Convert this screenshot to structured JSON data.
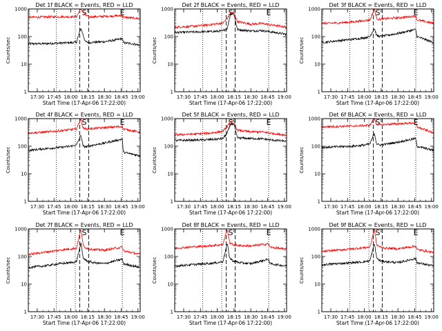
{
  "chart_data": {
    "type": "line",
    "grid_layout": "3x3",
    "y_scale": "log",
    "ylim": [
      1,
      1000
    ],
    "y_ticks": [
      1,
      10,
      100,
      1000
    ],
    "y_tick_labels": [
      "1",
      "10",
      "100",
      "1000"
    ],
    "x_ticks": [
      "17:30",
      "17:45",
      "18:00",
      "18:15",
      "18:30",
      "18:45",
      "19:00"
    ],
    "x_tick_labels": [
      "17:30",
      "17:45",
      "18:00",
      "18:15",
      "18:30",
      "18:45",
      "19:00"
    ],
    "xlim": [
      "17:22",
      "19:02"
    ],
    "xlabel": "Start Time (17-Apr-06 17:22:00)",
    "ylabel": "Counts/sec",
    "interval_markers": [
      {
        "label": "S",
        "times": [
          "18:08",
          "18:16"
        ],
        "style": "dashed"
      },
      {
        "label": "E",
        "times": [
          "18:46"
        ],
        "style": "dotted"
      }
    ],
    "night_markers": [
      "17:22",
      "17:47",
      "18:04"
    ],
    "series_colors": {
      "events": "#000000",
      "lld": "#ff0000"
    },
    "panels": [
      {
        "title": "Det 1f BLACK = Events, RED = LLD",
        "series": [
          {
            "name": "Events",
            "color": "#000000",
            "x": [
              "17:22",
              "17:35",
              "17:50",
              "18:00",
              "18:05",
              "18:09",
              "18:13",
              "18:16",
              "18:20",
              "18:30",
              "18:40",
              "18:46",
              "18:47",
              "18:55",
              "19:02"
            ],
            "values": [
              55,
              55,
              58,
              60,
              62,
              200,
              65,
              60,
              62,
              65,
              75,
              85,
              60,
              55,
              48
            ]
          },
          {
            "name": "LLD",
            "color": "#ff0000",
            "x": [
              "17:22",
              "17:35",
              "17:50",
              "18:00",
              "18:05",
              "18:09",
              "18:13",
              "18:16",
              "18:20",
              "18:30",
              "18:40",
              "18:46",
              "18:47",
              "18:55",
              "19:02"
            ],
            "values": [
              500,
              510,
              520,
              520,
              530,
              1000,
              600,
              520,
              520,
              540,
              560,
              570,
              500,
              470,
              440
            ]
          }
        ]
      },
      {
        "title": "Det 2f BLACK = Events, RED = LLD",
        "series": [
          {
            "name": "Events",
            "color": "#000000",
            "x": [
              "17:22",
              "17:35",
              "17:50",
              "18:00",
              "18:05",
              "18:09",
              "18:12",
              "18:15",
              "18:18",
              "18:30",
              "18:40",
              "18:47",
              "19:02"
            ],
            "values": [
              140,
              145,
              150,
              155,
              160,
              200,
              700,
              650,
              180,
              160,
              165,
              150,
              120
            ]
          },
          {
            "name": "LLD",
            "color": "#ff0000",
            "x": [
              "17:22",
              "17:35",
              "17:50",
              "18:00",
              "18:05",
              "18:09",
              "18:12",
              "18:15",
              "18:18",
              "18:30",
              "18:40",
              "18:47",
              "19:02"
            ],
            "values": [
              220,
              230,
              260,
              290,
              310,
              450,
              750,
              700,
              350,
              280,
              300,
              270,
              220
            ]
          }
        ]
      },
      {
        "title": "Det 3f BLACK = Events, RED = LLD",
        "series": [
          {
            "name": "Events",
            "color": "#000000",
            "x": [
              "17:22",
              "17:35",
              "17:50",
              "18:00",
              "18:05",
              "18:09",
              "18:11",
              "18:14",
              "18:20",
              "18:30",
              "18:40",
              "18:46",
              "18:47",
              "19:02"
            ],
            "values": [
              60,
              70,
              80,
              90,
              100,
              200,
              110,
              100,
              110,
              130,
              160,
              180,
              100,
              60
            ]
          },
          {
            "name": "LLD",
            "color": "#ff0000",
            "x": [
              "17:22",
              "17:35",
              "17:50",
              "18:00",
              "18:05",
              "18:09",
              "18:11",
              "18:14",
              "18:20",
              "18:30",
              "18:40",
              "18:46",
              "18:47",
              "19:02"
            ],
            "values": [
              300,
              310,
              340,
              380,
              400,
              1000,
              450,
              420,
              450,
              480,
              520,
              560,
              400,
              300
            ]
          }
        ]
      },
      {
        "title": "Det 4f BLACK = Events, RED = LLD",
        "series": [
          {
            "name": "Events",
            "color": "#000000",
            "x": [
              "17:22",
              "17:35",
              "17:50",
              "18:00",
              "18:05",
              "18:09",
              "18:11",
              "18:14",
              "18:20",
              "18:30",
              "18:40",
              "18:46",
              "18:47",
              "19:02"
            ],
            "values": [
              70,
              80,
              90,
              100,
              110,
              250,
              100,
              95,
              110,
              130,
              160,
              180,
              60,
              45
            ]
          },
          {
            "name": "LLD",
            "color": "#ff0000",
            "x": [
              "17:22",
              "17:35",
              "17:50",
              "18:00",
              "18:05",
              "18:09",
              "18:11",
              "18:14",
              "18:20",
              "18:30",
              "18:40",
              "18:46",
              "18:47",
              "19:02"
            ],
            "values": [
              300,
              320,
              360,
              400,
              420,
              1000,
              450,
              420,
              440,
              470,
              500,
              520,
              420,
              320
            ]
          }
        ]
      },
      {
        "title": "Det 5f BLACK = Events, RED = LLD",
        "series": [
          {
            "name": "Events",
            "color": "#000000",
            "x": [
              "17:22",
              "17:35",
              "17:50",
              "18:00",
              "18:05",
              "18:09",
              "18:12",
              "18:15",
              "18:18",
              "18:30",
              "18:40",
              "18:47",
              "19:02"
            ],
            "values": [
              160,
              165,
              170,
              180,
              190,
              300,
              650,
              600,
              200,
              190,
              185,
              170,
              150
            ]
          },
          {
            "name": "LLD",
            "color": "#ff0000",
            "x": [
              "17:22",
              "17:35",
              "17:50",
              "18:00",
              "18:05",
              "18:09",
              "18:12",
              "18:15",
              "18:18",
              "18:30",
              "18:40",
              "18:47",
              "19:02"
            ],
            "values": [
              260,
              270,
              290,
              320,
              350,
              500,
              800,
              750,
              380,
              330,
              330,
              300,
              250
            ]
          }
        ]
      },
      {
        "title": "Det 6f BLACK = Events, RED = LLD",
        "series": [
          {
            "name": "Events",
            "color": "#000000",
            "x": [
              "17:22",
              "17:35",
              "17:50",
              "18:00",
              "18:05",
              "18:09",
              "18:11",
              "18:14",
              "18:20",
              "18:30",
              "18:40",
              "18:46",
              "18:47",
              "19:02"
            ],
            "values": [
              90,
              95,
              100,
              110,
              120,
              300,
              120,
              110,
              120,
              140,
              170,
              190,
              100,
              70
            ]
          },
          {
            "name": "LLD",
            "color": "#ff0000",
            "x": [
              "17:22",
              "17:35",
              "17:50",
              "18:00",
              "18:05",
              "18:09",
              "18:11",
              "18:14",
              "18:20",
              "18:30",
              "18:40",
              "18:46",
              "18:47",
              "19:02"
            ],
            "values": [
              500,
              520,
              540,
              560,
              580,
              1000,
              620,
              600,
              620,
              650,
              680,
              700,
              500,
              300
            ]
          }
        ]
      },
      {
        "title": "Det 7f BLACK = Events, RED = LLD",
        "series": [
          {
            "name": "Events",
            "color": "#000000",
            "x": [
              "17:22",
              "17:35",
              "17:50",
              "18:00",
              "18:05",
              "18:09",
              "18:11",
              "18:14",
              "18:20",
              "18:30",
              "18:40",
              "18:46",
              "18:47",
              "19:02"
            ],
            "values": [
              40,
              45,
              55,
              60,
              65,
              300,
              90,
              70,
              60,
              55,
              70,
              80,
              55,
              40
            ]
          },
          {
            "name": "LLD",
            "color": "#ff0000",
            "x": [
              "17:22",
              "17:35",
              "17:50",
              "18:00",
              "18:05",
              "18:09",
              "18:11",
              "18:14",
              "18:20",
              "18:30",
              "18:40",
              "18:46",
              "18:47",
              "19:02"
            ],
            "values": [
              120,
              140,
              170,
              190,
              200,
              1000,
              250,
              200,
              180,
              170,
              200,
              220,
              160,
              120
            ]
          }
        ]
      },
      {
        "title": "Det 8f BLACK = Events, RED = LLD",
        "series": [
          {
            "name": "Events",
            "color": "#000000",
            "x": [
              "17:22",
              "17:35",
              "17:50",
              "18:00",
              "18:05",
              "18:09",
              "18:11",
              "18:14",
              "18:20",
              "18:30",
              "18:40",
              "18:46",
              "18:47",
              "19:02"
            ],
            "values": [
              45,
              50,
              55,
              60,
              65,
              300,
              90,
              70,
              60,
              55,
              70,
              80,
              55,
              45
            ]
          },
          {
            "name": "LLD",
            "color": "#ff0000",
            "x": [
              "17:22",
              "17:35",
              "17:50",
              "18:00",
              "18:05",
              "18:09",
              "18:11",
              "18:14",
              "18:20",
              "18:30",
              "18:40",
              "18:46",
              "18:47",
              "19:02"
            ],
            "values": [
              200,
              220,
              240,
              260,
              270,
              1000,
              320,
              270,
              250,
              240,
              270,
              290,
              220,
              180
            ]
          }
        ]
      },
      {
        "title": "Det 9f BLACK = Events, RED = LLD",
        "series": [
          {
            "name": "Events",
            "color": "#000000",
            "x": [
              "17:22",
              "17:35",
              "17:50",
              "18:00",
              "18:05",
              "18:09",
              "18:11",
              "18:14",
              "18:20",
              "18:30",
              "18:40",
              "18:46",
              "18:47",
              "19:02"
            ],
            "values": [
              50,
              55,
              60,
              65,
              70,
              300,
              90,
              70,
              65,
              60,
              75,
              85,
              60,
              45
            ]
          },
          {
            "name": "LLD",
            "color": "#ff0000",
            "x": [
              "17:22",
              "17:35",
              "17:50",
              "18:00",
              "18:05",
              "18:09",
              "18:11",
              "18:14",
              "18:20",
              "18:30",
              "18:40",
              "18:46",
              "18:47",
              "19:02"
            ],
            "values": [
              150,
              170,
              190,
              210,
              220,
              1000,
              270,
              220,
              200,
              190,
              220,
              240,
              180,
              140
            ]
          }
        ]
      }
    ]
  }
}
